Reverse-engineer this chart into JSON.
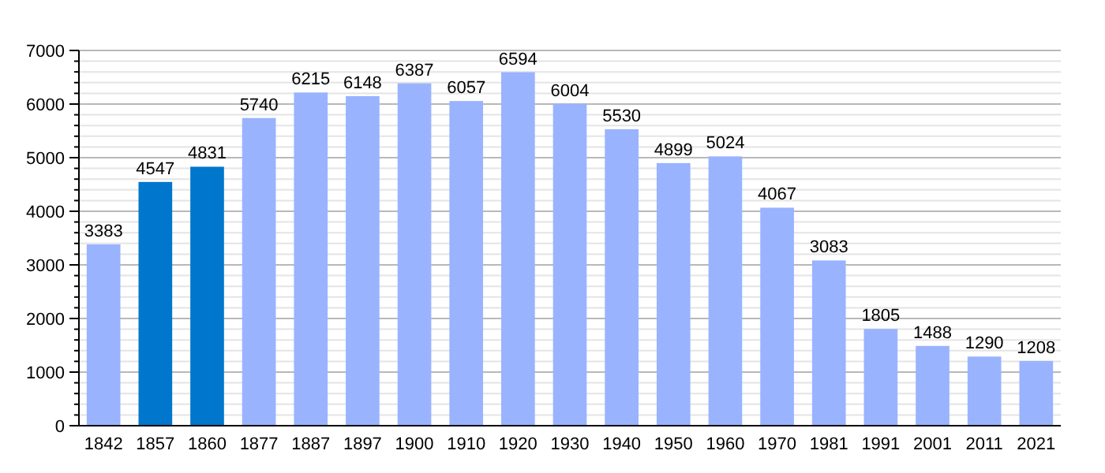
{
  "chart_data": {
    "type": "bar",
    "categories": [
      "1842",
      "1857",
      "1860",
      "1877",
      "1887",
      "1897",
      "1900",
      "1910",
      "1920",
      "1930",
      "1940",
      "1950",
      "1960",
      "1970",
      "1981",
      "1991",
      "2001",
      "2011",
      "2021"
    ],
    "values": [
      3383,
      4547,
      4831,
      5740,
      6215,
      6148,
      6387,
      6057,
      6594,
      6004,
      5530,
      4899,
      5024,
      4067,
      3083,
      1805,
      1488,
      1290,
      1208
    ],
    "colors": [
      "#99b3ff",
      "#0077cc",
      "#0077cc",
      "#99b3ff",
      "#99b3ff",
      "#99b3ff",
      "#99b3ff",
      "#99b3ff",
      "#99b3ff",
      "#99b3ff",
      "#99b3ff",
      "#99b3ff",
      "#99b3ff",
      "#99b3ff",
      "#99b3ff",
      "#99b3ff",
      "#99b3ff",
      "#99b3ff",
      "#99b3ff"
    ],
    "ylim": [
      0,
      7000
    ],
    "yticks": [
      0,
      {
        "value": 200,
        "label": null
      },
      {
        "value": 400,
        "label": null
      },
      {
        "value": 600,
        "label": null
      },
      {
        "value": 800,
        "label": null
      },
      1000,
      {
        "value": 1200,
        "label": null
      },
      {
        "value": 1400,
        "label": null
      },
      {
        "value": 1600,
        "label": null
      },
      {
        "value": 1800,
        "label": null
      },
      2000,
      {
        "value": 2200,
        "label": null
      },
      {
        "value": 2400,
        "label": null
      },
      {
        "value": 2600,
        "label": null
      },
      {
        "value": 2800,
        "label": null
      },
      3000,
      {
        "value": 3200,
        "label": null
      },
      {
        "value": 3400,
        "label": null
      },
      {
        "value": 3600,
        "label": null
      },
      {
        "value": 3800,
        "label": null
      },
      4000,
      {
        "value": 4200,
        "label": null
      },
      {
        "value": 4400,
        "label": null
      },
      {
        "value": 4600,
        "label": null
      },
      {
        "value": 4800,
        "label": null
      },
      5000,
      {
        "value": 5200,
        "label": null
      },
      {
        "value": 5400,
        "label": null
      },
      {
        "value": 5600,
        "label": null
      },
      {
        "value": 5800,
        "label": null
      },
      6000,
      {
        "value": 6200,
        "label": null
      },
      {
        "value": 6400,
        "label": null
      },
      {
        "value": 6600,
        "label": null
      },
      {
        "value": 6800,
        "label": null
      },
      7000
    ],
    "grid": "y",
    "data_labels": true
  }
}
